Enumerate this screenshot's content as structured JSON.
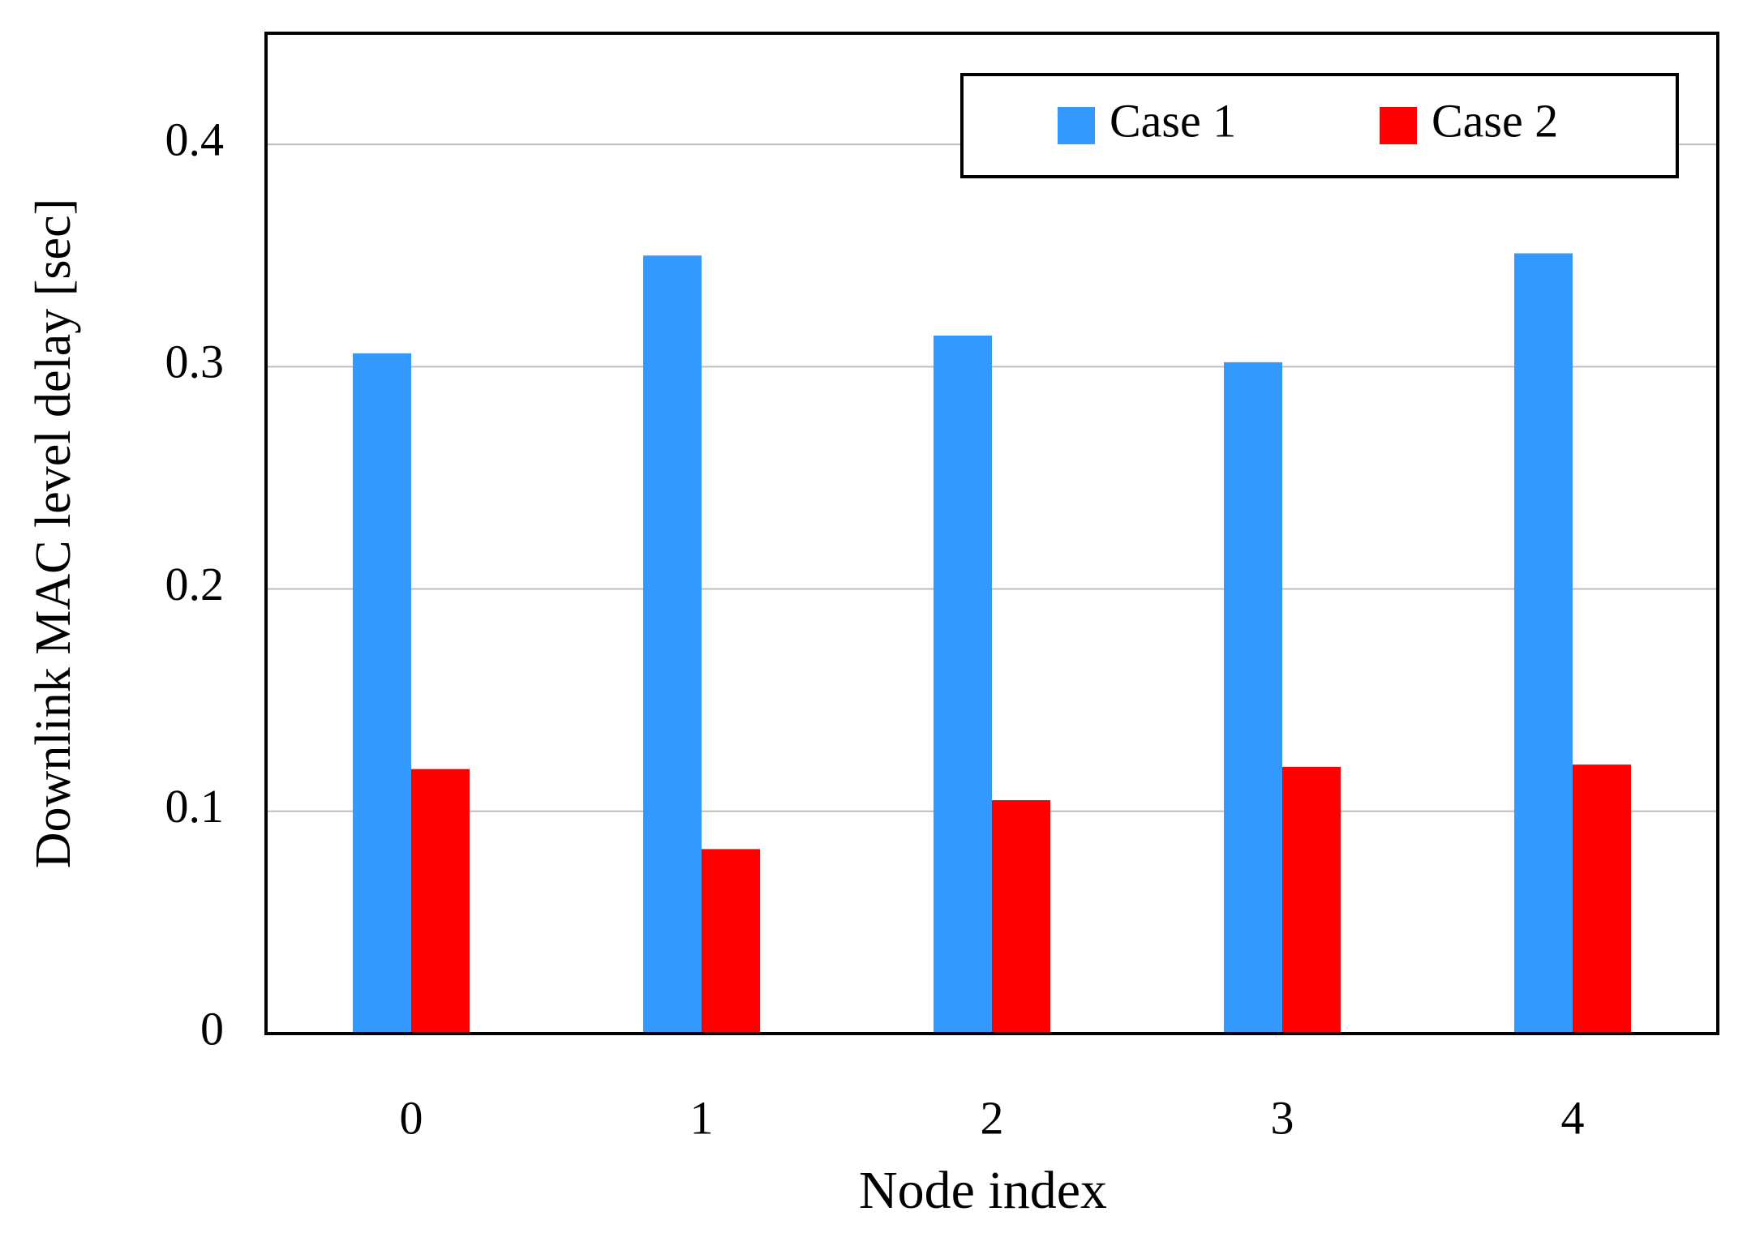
{
  "chart_data": {
    "type": "bar",
    "x_label": "Node index",
    "y_label": "Downlink MAC level delay [sec]",
    "categories": [
      "0",
      "1",
      "2",
      "3",
      "4"
    ],
    "series": [
      {
        "name": "Case 1",
        "color": "#3399ff",
        "values": [
          0.306,
          0.35,
          0.314,
          0.302,
          0.351
        ]
      },
      {
        "name": "Case 2",
        "color": "#ff0000",
        "values": [
          0.119,
          0.083,
          0.105,
          0.12,
          0.121
        ]
      }
    ],
    "ylim": [
      0,
      0.45
    ],
    "yticks": [
      0,
      0.1,
      0.2,
      0.3,
      0.4
    ],
    "grid": true,
    "legend": "top-right"
  }
}
